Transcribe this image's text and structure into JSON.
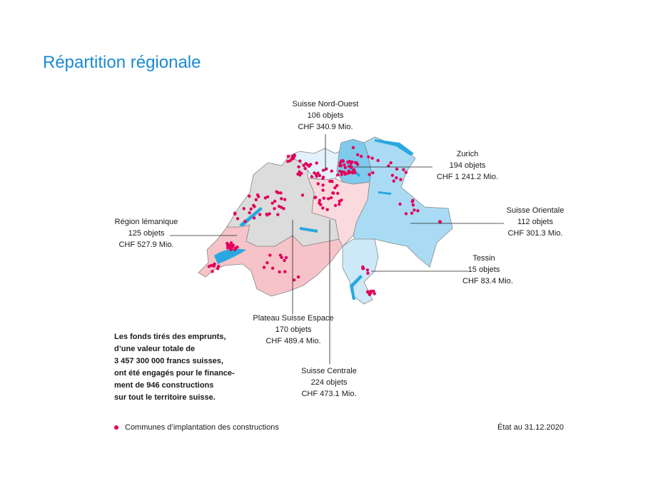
{
  "title": "Répartition régionale",
  "colors": {
    "accent": "#1a8ad4",
    "dot": "#e2005a",
    "lake": "#29a8e0"
  },
  "regions": {
    "nord_ouest": {
      "name": "Suisse Nord-Ouest",
      "objets": "106 objets",
      "chf": "CHF 340.9 Mio.",
      "color": "#e3f1fa"
    },
    "zurich": {
      "name": "Zurich",
      "objets": "194 objets",
      "chf": "CHF 1 241.2 Mio.",
      "color": "#7fcaed"
    },
    "orientale": {
      "name": "Suisse Orientale",
      "objets": "112 objets",
      "chf": "CHF 301.3 Mio.",
      "color": "#a9dcf4"
    },
    "tessin": {
      "name": "Tessin",
      "objets": "15 objets",
      "chf": "CHF 83.4 Mio.",
      "color": "#cde9f8"
    },
    "lemanique": {
      "name": "Région lémanique",
      "objets": "125 objets",
      "chf": "CHF 527.9 Mio.",
      "color": "#f5c3c8"
    },
    "plateau": {
      "name": "Plateau Suisse Espace",
      "objets": "170 objets",
      "chf": "CHF 489.4 Mio.",
      "color": "#dcdcdc"
    },
    "centrale": {
      "name": "Suisse Centrale",
      "objets": "224 objets",
      "chf": "CHF 473.1 Mio.",
      "color": "#fadadd"
    }
  },
  "intro": [
    "Les fonds tirés des emprunts,",
    "d’une valeur totale de",
    "3 457 300 000 francs suisses,",
    "ont été engagés pour le finance-",
    "ment de 946 constructions",
    "sur tout le territoire suisse."
  ],
  "legend": "Communes d’implantation des constructions",
  "date": "État au 31.12.2020"
}
